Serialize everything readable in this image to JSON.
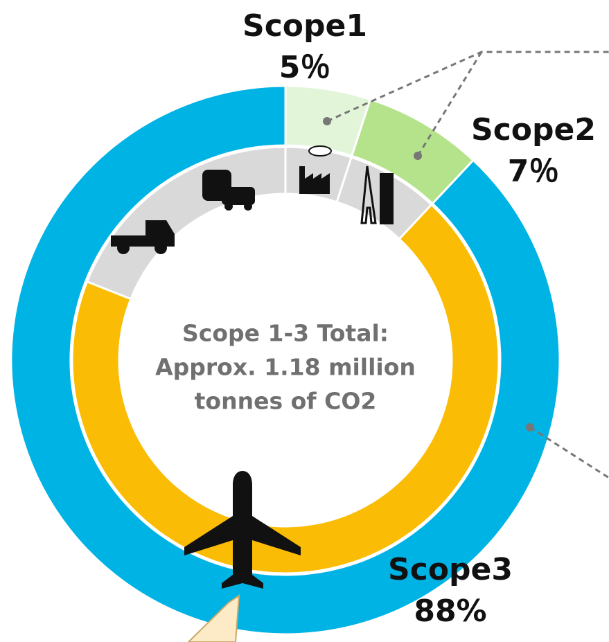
{
  "chart_data": {
    "type": "pie",
    "rings": [
      {
        "categories": [
          "Scope1",
          "Scope2",
          "Scope3"
        ],
        "values": [
          5,
          7,
          88
        ],
        "value_labels": [
          "5％",
          "7％",
          "88%"
        ],
        "colors": [
          "#e3f5d9",
          "#b4e38c",
          "#00b3e5"
        ]
      },
      {
        "categories": [
          null,
          null,
          null,
          null
        ],
        "values": [
          5,
          7,
          69,
          19
        ],
        "colors": [
          "#d9d9d9",
          "#d9d9d9",
          "#fbbc05",
          "#d9d9d9"
        ]
      }
    ],
    "annotations": [
      "Scope 1-3 Total:",
      "Approx. 1.18 million",
      "tonnes of CO2"
    ]
  }
}
